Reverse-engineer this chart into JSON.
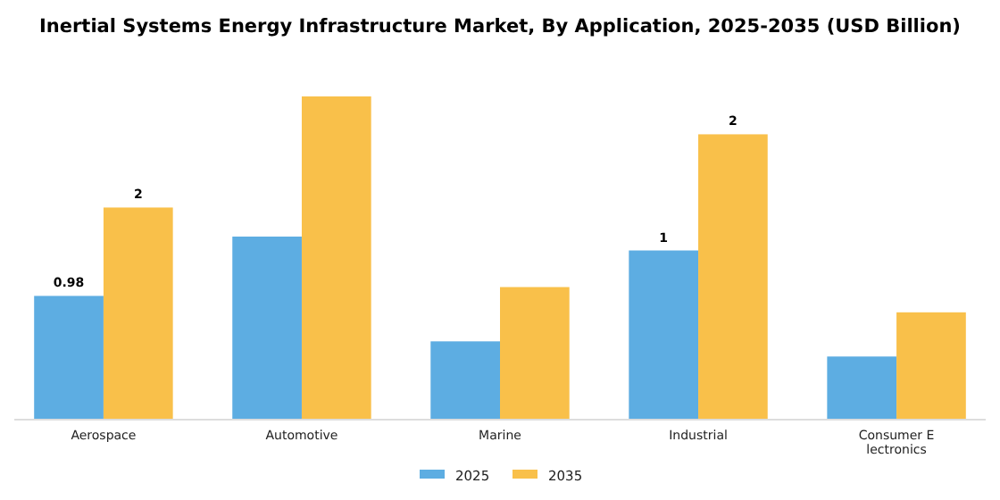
{
  "chart_data": {
    "type": "bar",
    "title": "Inertial Systems Energy Infrastructure Market, By Application, 2025-2035 (USD Billion)",
    "categories": [
      "Aerospace",
      "Automotive",
      "Marine",
      "Industrial",
      "Consumer Electronics"
    ],
    "legend": "bottom",
    "series": [
      {
        "name": "2025",
        "color": "#5dade2",
        "values": [
          0.98,
          1.45,
          0.62,
          1.34,
          0.5
        ],
        "value_labels": [
          "0.98",
          null,
          null,
          "1",
          null
        ]
      },
      {
        "name": "2035",
        "color": "#f9c04a",
        "values": [
          1.68,
          2.56,
          1.05,
          2.26,
          0.85
        ],
        "value_labels": [
          "2",
          null,
          null,
          "2",
          null
        ]
      }
    ]
  }
}
